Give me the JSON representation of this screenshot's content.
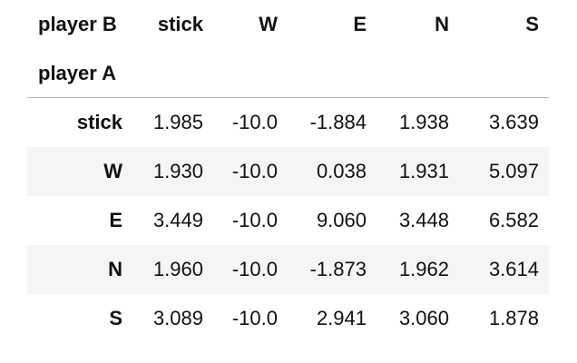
{
  "table": {
    "columns_name": "player B",
    "index_name": "player A",
    "columns": [
      "stick",
      "W",
      "E",
      "N",
      "S"
    ],
    "rows": [
      {
        "label": "stick",
        "values": [
          "1.985",
          "-10.0",
          "-1.884",
          "1.938",
          "3.639"
        ]
      },
      {
        "label": "W",
        "values": [
          "1.930",
          "-10.0",
          "0.038",
          "1.931",
          "5.097"
        ]
      },
      {
        "label": "E",
        "values": [
          "3.449",
          "-10.0",
          "9.060",
          "3.448",
          "6.582"
        ]
      },
      {
        "label": "N",
        "values": [
          "1.960",
          "-10.0",
          "-1.873",
          "1.962",
          "3.614"
        ]
      },
      {
        "label": "S",
        "values": [
          "3.089",
          "-10.0",
          "2.941",
          "3.060",
          "1.878"
        ]
      }
    ]
  }
}
